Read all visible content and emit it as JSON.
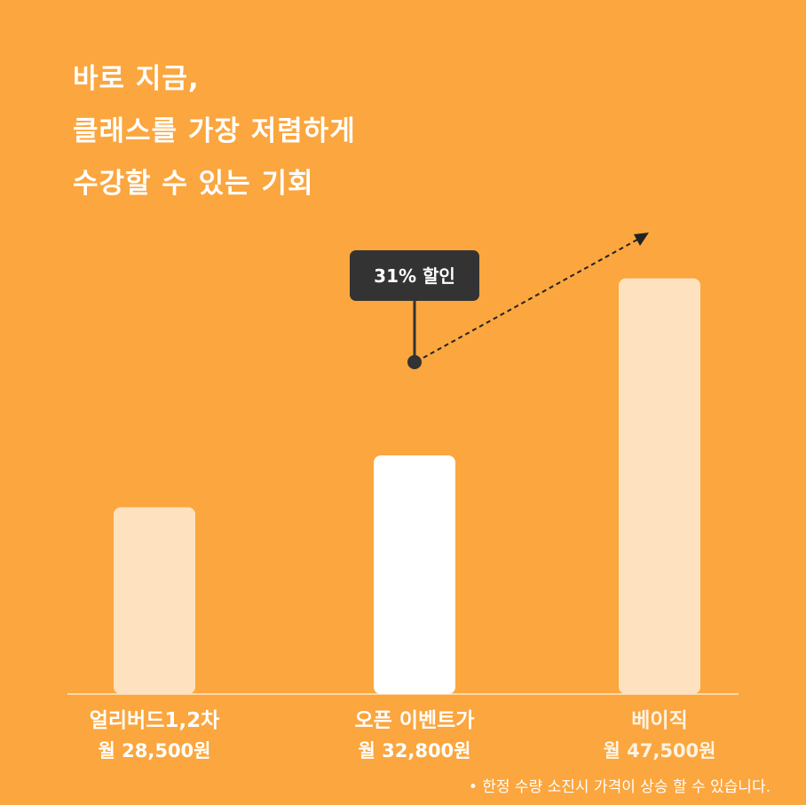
{
  "headline": {
    "line1": "바로 지금,",
    "line2": "클래스를 가장 저렴하게",
    "line3": "수강할 수 있는 기회"
  },
  "chart_data": {
    "type": "bar",
    "categories": [
      "얼리버드1,2차",
      "오픈 이벤트가",
      "베이직"
    ],
    "values": [
      28500,
      32800,
      47500
    ],
    "value_labels": [
      "월 28,500원",
      "월 32,800원",
      "월 47,500원"
    ],
    "ylim": [
      13000,
      48500
    ],
    "grid": false,
    "bar_colors": [
      "#FEE2BF",
      "#FFFFFF",
      "#FEE2BF"
    ],
    "label_colors": [
      "#FFFFFF",
      "#FFFFFF",
      "#FFF3E2"
    ],
    "callout": {
      "label": "31% 할인",
      "bar_index": 1
    }
  },
  "colors": {
    "background": "#FBA63E",
    "callout_bg": "#333333",
    "axis": "#FEE9CF"
  },
  "footnote": "• 한정 수량 소진시 가격이 상승 할 수 있습니다."
}
